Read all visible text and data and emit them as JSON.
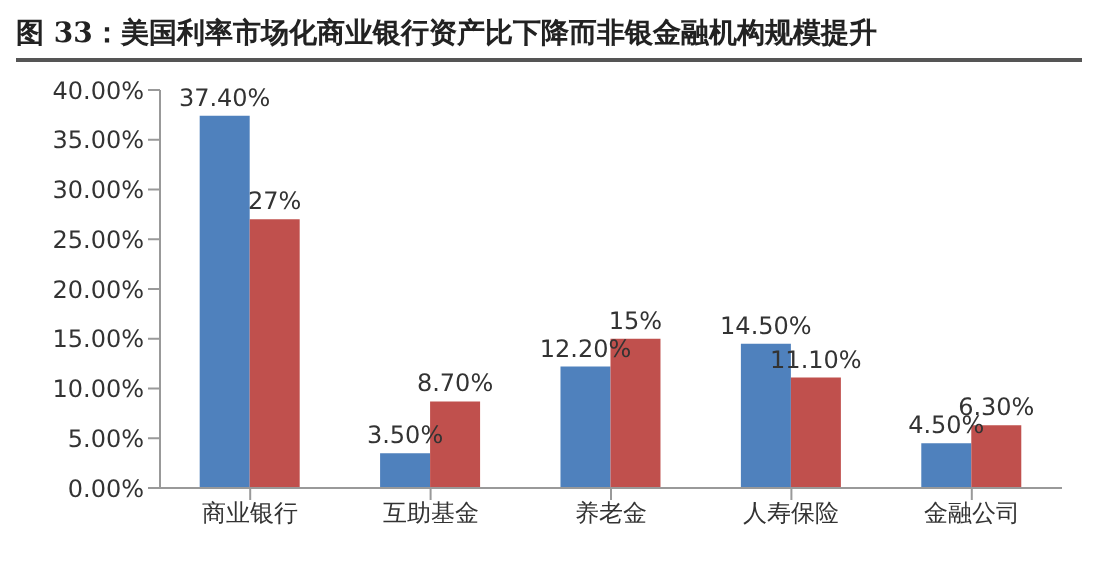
{
  "chart_data": {
    "type": "bar",
    "title": "图 33：美国利率市场化商业银行资产比下降而非银金融机构规模提升",
    "categories": [
      "商业银行",
      "互助基金",
      "养老金",
      "人寿保险",
      "金融公司"
    ],
    "series": [
      {
        "color": "#4f81bd",
        "values": [
          37.4,
          3.5,
          12.2,
          14.5,
          4.5
        ],
        "value_labels": [
          "37.40%",
          "3.50%",
          "12.20%",
          "14.50%",
          "4.50%"
        ]
      },
      {
        "color": "#c0504d",
        "values": [
          27,
          8.7,
          15,
          11.1,
          6.3
        ],
        "value_labels": [
          "27%",
          "8.70%",
          "15%",
          "11.10%",
          "6.30%"
        ]
      }
    ],
    "ylim": [
      0,
      40
    ],
    "yticks": [
      {
        "value": 0,
        "label": "0.00%"
      },
      {
        "value": 5,
        "label": "5.00%"
      },
      {
        "value": 10,
        "label": "10.00%"
      },
      {
        "value": 15,
        "label": "15.00%"
      },
      {
        "value": 20,
        "label": "20.00%"
      },
      {
        "value": 25,
        "label": "25.00%"
      },
      {
        "value": 30,
        "label": "30.00%"
      },
      {
        "value": 35,
        "label": "35.00%"
      },
      {
        "value": 40,
        "label": "40.00%"
      }
    ],
    "grid": false,
    "legend": false
  }
}
